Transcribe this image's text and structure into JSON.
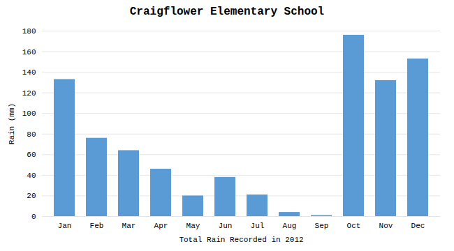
{
  "chart_data": {
    "type": "bar",
    "title": "Craigflower Elementary School",
    "xlabel": "Total Rain Recorded in 2012",
    "ylabel": "Rain (mm)",
    "categories": [
      "Jan",
      "Feb",
      "Mar",
      "Apr",
      "May",
      "Jun",
      "Jul",
      "Aug",
      "Sep",
      "Oct",
      "Nov",
      "Dec"
    ],
    "values": [
      133,
      76,
      64,
      46,
      20,
      38,
      21,
      4,
      1,
      176,
      132,
      153
    ],
    "color": "#5B9BD5",
    "ylim": [
      0,
      180
    ],
    "yticks": [
      0,
      20,
      40,
      60,
      80,
      100,
      120,
      140,
      160,
      180
    ],
    "grid": true
  }
}
